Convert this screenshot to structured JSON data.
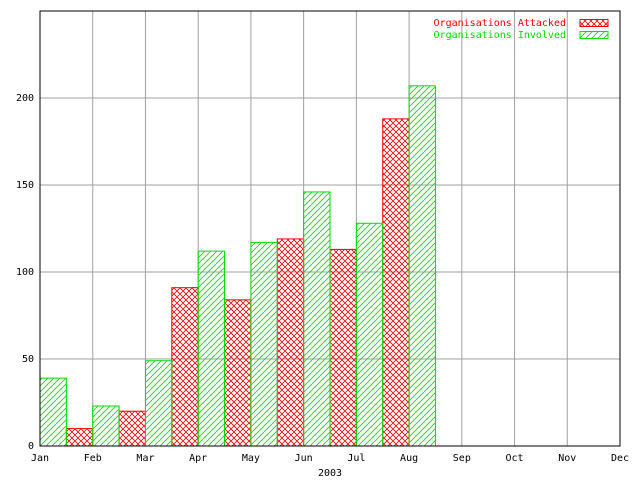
{
  "chart_data": {
    "type": "bar",
    "x_label": "2003",
    "categories": [
      "Jan",
      "Feb",
      "Mar",
      "Apr",
      "May",
      "Jun",
      "Jul",
      "Aug",
      "Sep",
      "Oct",
      "Nov",
      "Dec"
    ],
    "series": [
      {
        "name": "Organisations Attacked",
        "color": "#ff0000",
        "pattern": "crosshatch",
        "values": [
          null,
          10,
          20,
          91,
          84,
          119,
          113,
          188,
          null,
          null,
          null,
          null
        ]
      },
      {
        "name": "Organisations Involved",
        "color": "#00dd00",
        "pattern": "diagonal",
        "values": [
          39,
          23,
          49,
          112,
          117,
          146,
          128,
          207,
          null,
          null,
          null,
          null
        ]
      }
    ],
    "ylim": [
      0,
      250
    ],
    "yticks": [
      0,
      50,
      100,
      150,
      200
    ],
    "grid": true,
    "legend": "top-right"
  }
}
